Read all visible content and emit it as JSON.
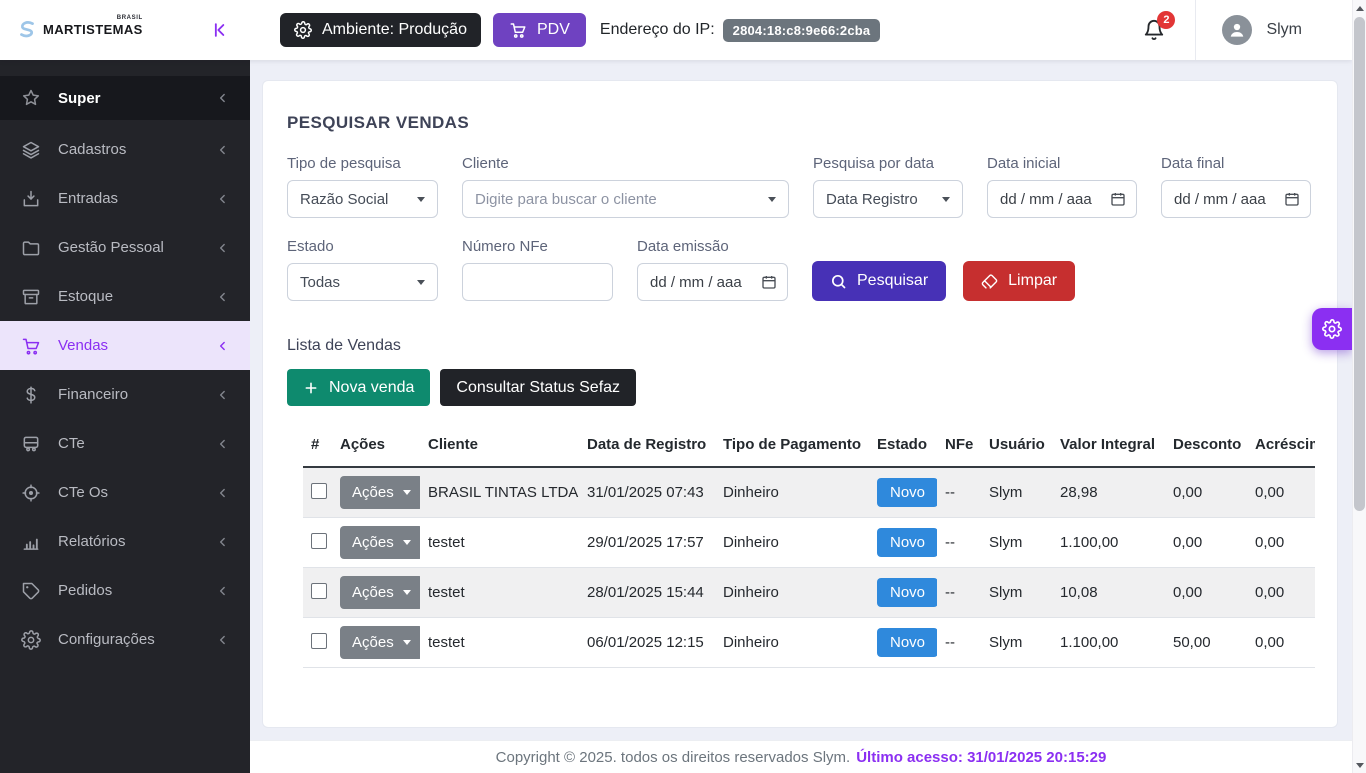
{
  "colors": {
    "accent": "#8b2ff2",
    "pdv_purple": "#6f42c1",
    "search_indigo": "#4731b6",
    "danger_red": "#c62f2f",
    "success_green": "#0e8a6e",
    "dark_button": "#212328",
    "novo_blue": "#2f89dc",
    "actions_gray": "#7a8087",
    "ip_badge_gray": "#6c757d",
    "badge_red": "#e23636",
    "sidebar_bg": "#232429",
    "sidebar_header_bg": "#17181d",
    "sidebar_active_bg": "#ece4fb",
    "page_bg": "#edeff7"
  },
  "header": {
    "brand": "MARTISTEMAS",
    "brand_tag": "BRASIL",
    "environment_button": "Ambiente: Produção",
    "pdv_button": "PDV",
    "ip_label": "Endereço do IP:",
    "ip_value": "2804:18:c8:9e66:2cba",
    "notification_count": "2",
    "username": "Slym"
  },
  "sidebar": {
    "items": [
      {
        "id": "super",
        "label": "Super",
        "icon": "star-icon",
        "header": true
      },
      {
        "id": "cadastros",
        "label": "Cadastros",
        "icon": "layers-icon"
      },
      {
        "id": "entradas",
        "label": "Entradas",
        "icon": "inbox-icon"
      },
      {
        "id": "gestao-pessoal",
        "label": "Gestão Pessoal",
        "icon": "folder-icon"
      },
      {
        "id": "estoque",
        "label": "Estoque",
        "icon": "archive-icon"
      },
      {
        "id": "vendas",
        "label": "Vendas",
        "icon": "cart-icon",
        "active": true
      },
      {
        "id": "financeiro",
        "label": "Financeiro",
        "icon": "dollar-icon"
      },
      {
        "id": "cte",
        "label": "CTe",
        "icon": "bus-icon"
      },
      {
        "id": "cte-os",
        "label": "CTe Os",
        "icon": "target-icon"
      },
      {
        "id": "relatorios",
        "label": "Relatórios",
        "icon": "chart-icon"
      },
      {
        "id": "pedidos",
        "label": "Pedidos",
        "icon": "tag-icon"
      },
      {
        "id": "configuracoes",
        "label": "Configurações",
        "icon": "gear-icon"
      }
    ]
  },
  "search": {
    "title": "PESQUISAR VENDAS",
    "tipo_label": "Tipo de pesquisa",
    "tipo_value": "Razão Social",
    "cliente_label": "Cliente",
    "cliente_placeholder": "Digite para buscar o cliente",
    "data_pesquisa_label": "Pesquisa por data",
    "data_pesquisa_value": "Data Registro",
    "data_inicial_label": "Data inicial",
    "data_inicial_value": "dd / mm / aaa",
    "data_final_label": "Data final",
    "data_final_value": "dd / mm / aaa",
    "estado_label": "Estado",
    "estado_value": "Todas",
    "nfe_label": "Número NFe",
    "nfe_value": "",
    "data_emissao_label": "Data emissão",
    "data_emissao_value": "dd / mm / aaa",
    "pesquisar_button": "Pesquisar",
    "limpar_button": "Limpar"
  },
  "list": {
    "title": "Lista de Vendas",
    "nova_venda_button": "Nova venda",
    "consultar_sefaz_button": "Consultar Status Sefaz",
    "table": {
      "headers": [
        "#",
        "Ações",
        "Cliente",
        "Data de Registro",
        "Tipo de Pagamento",
        "Estado",
        "NFe",
        "Usuário",
        "Valor Integral",
        "Desconto",
        "Acréscimo"
      ],
      "actions_button_label": "Ações",
      "rows": [
        {
          "cliente": "BRASIL TINTAS LTDA",
          "data_registro": "31/01/2025 07:43",
          "pagamento": "Dinheiro",
          "estado": "Novo",
          "nfe": "--",
          "usuario": "Slym",
          "valor_integral": "28,98",
          "desconto": "0,00",
          "acrescimo": "0,00"
        },
        {
          "cliente": "testet",
          "data_registro": "29/01/2025 17:57",
          "pagamento": "Dinheiro",
          "estado": "Novo",
          "nfe": "--",
          "usuario": "Slym",
          "valor_integral": "1.100,00",
          "desconto": "0,00",
          "acrescimo": "0,00"
        },
        {
          "cliente": "testet",
          "data_registro": "28/01/2025 15:44",
          "pagamento": "Dinheiro",
          "estado": "Novo",
          "nfe": "--",
          "usuario": "Slym",
          "valor_integral": "10,08",
          "desconto": "0,00",
          "acrescimo": "0,00"
        },
        {
          "cliente": "testet",
          "data_registro": "06/01/2025 12:15",
          "pagamento": "Dinheiro",
          "estado": "Novo",
          "nfe": "--",
          "usuario": "Slym",
          "valor_integral": "1.100,00",
          "desconto": "50,00",
          "acrescimo": "0,00"
        }
      ]
    }
  },
  "footer": {
    "copyright": "Copyright © 2025. todos os direitos reservados Slym.",
    "last_access": "Último acesso: 31/01/2025 20:15:29"
  }
}
